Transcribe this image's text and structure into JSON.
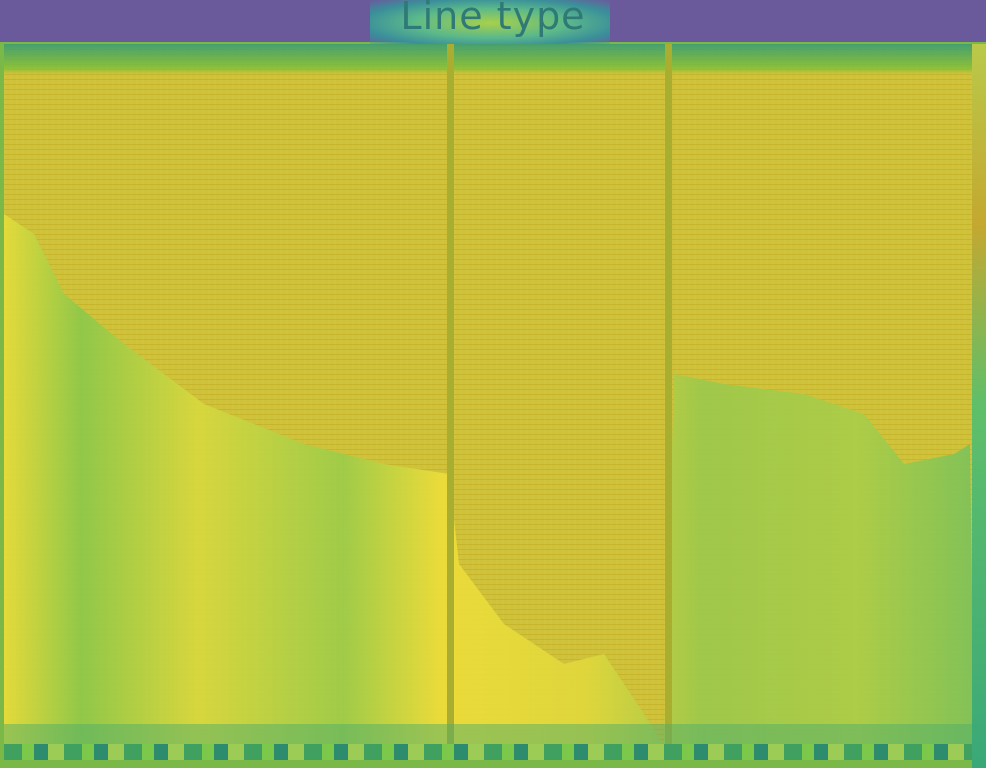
{
  "header": {
    "title": "Line type"
  }
}
